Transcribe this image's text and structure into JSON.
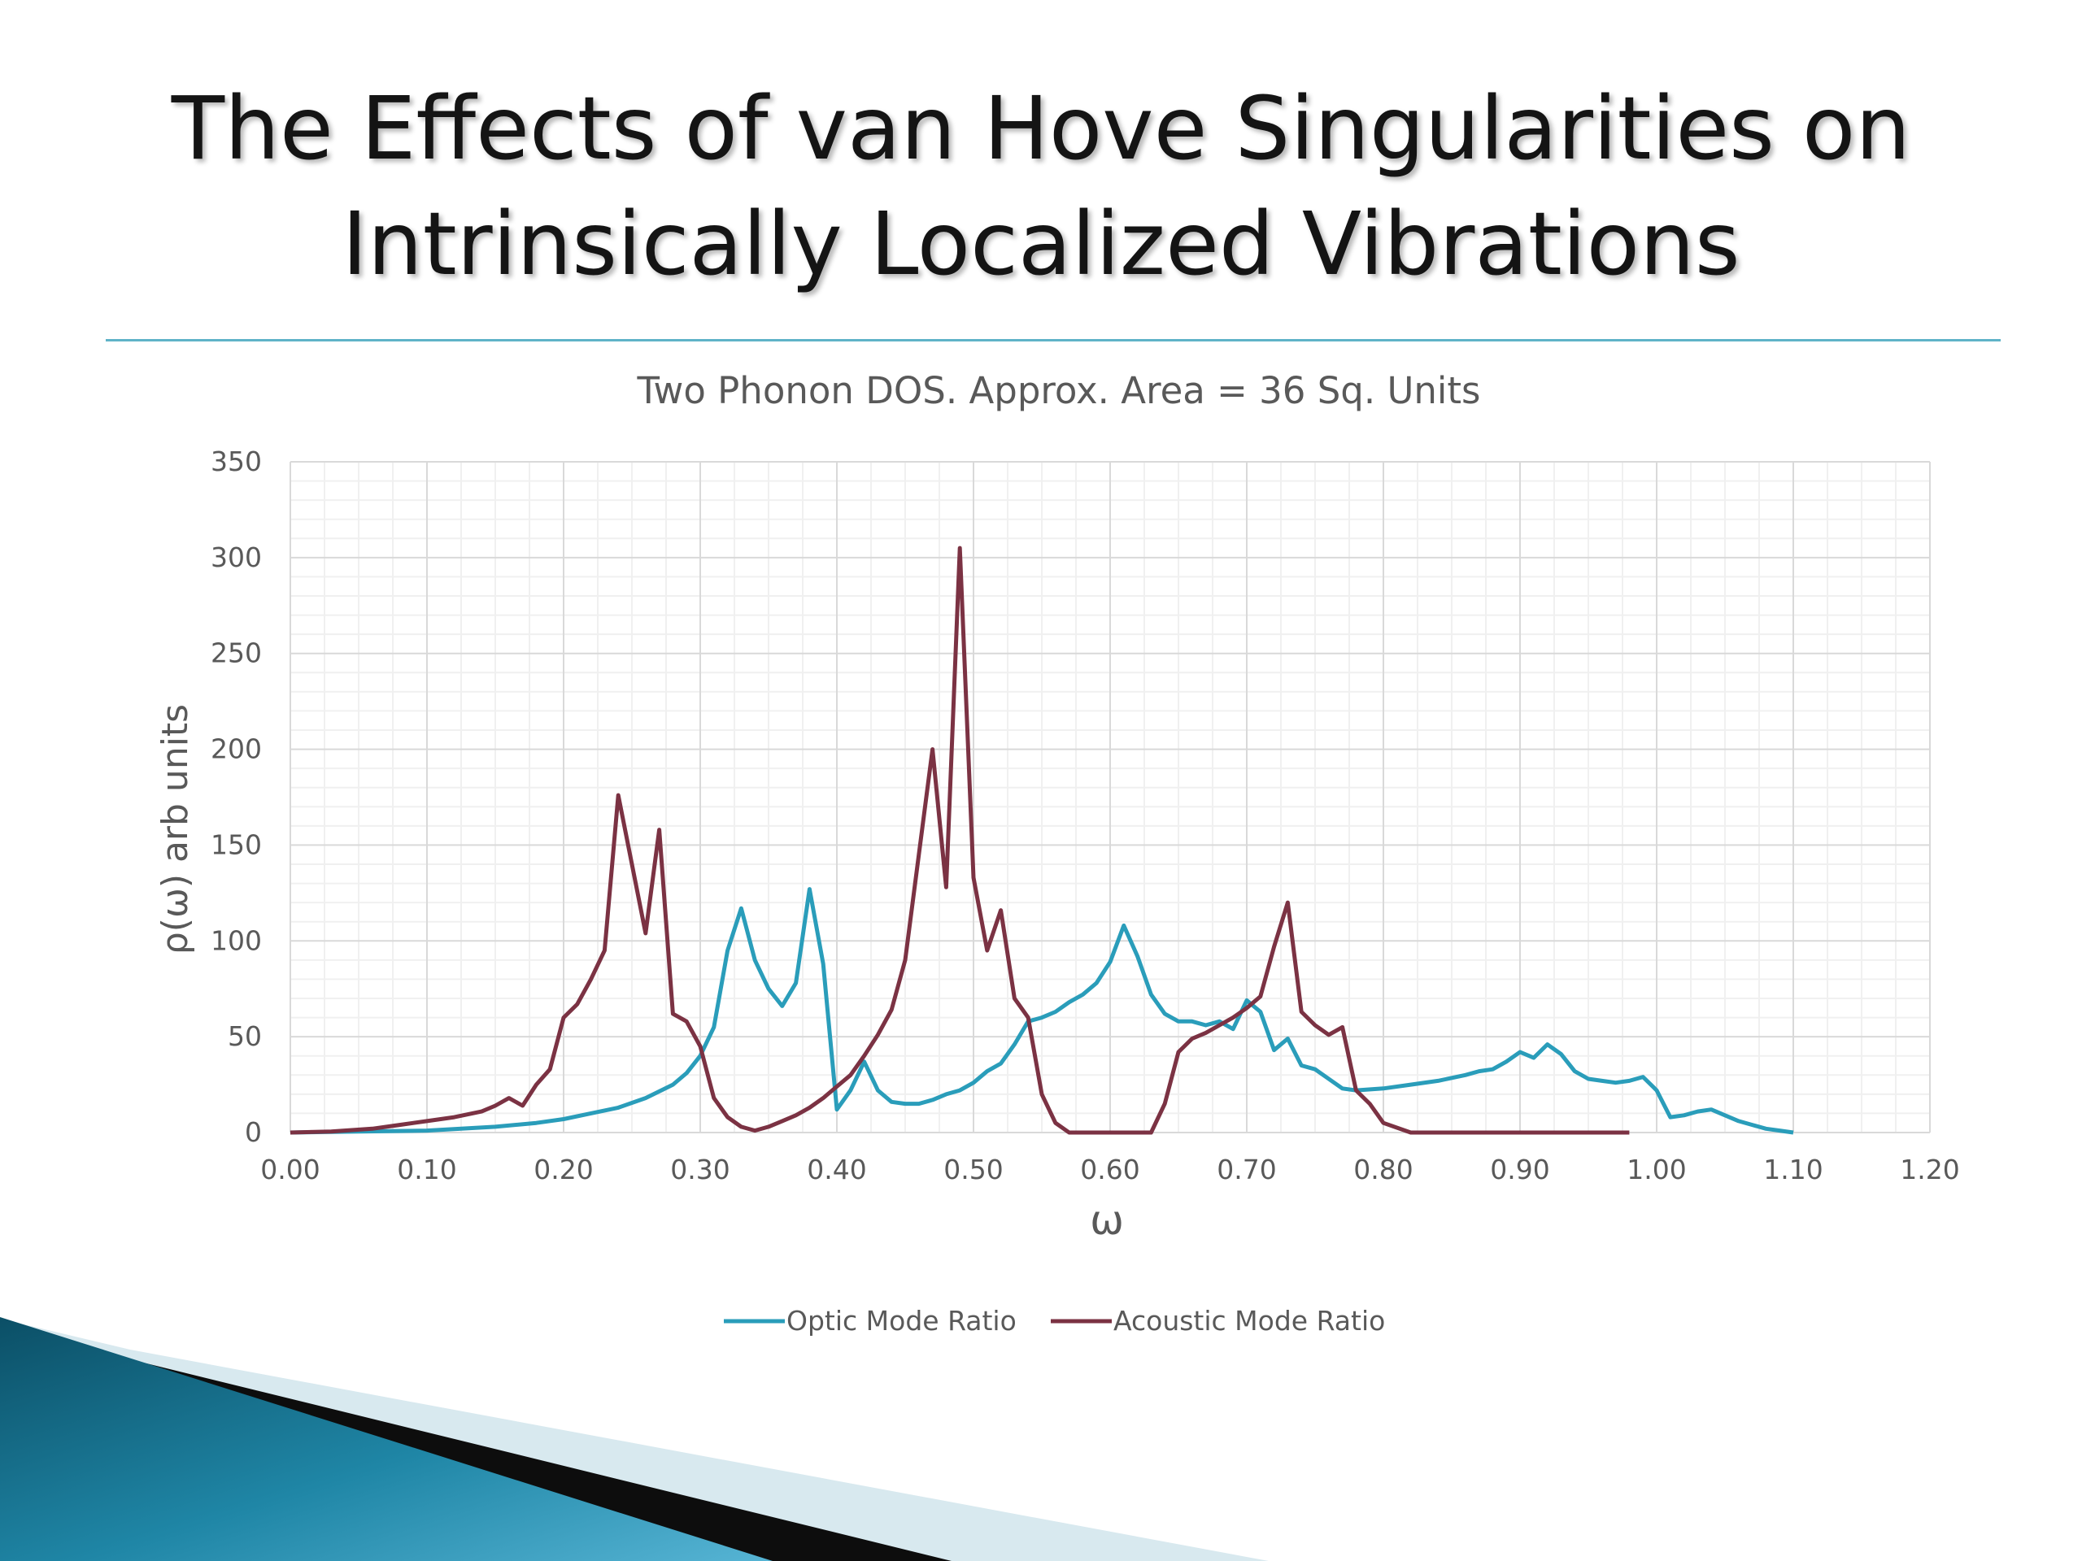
{
  "slide": {
    "title_line1": "The Effects of van Hove Singularities on",
    "title_line2": "Intrinsically Localized Vibrations",
    "divider_color": "#5fb3c8"
  },
  "chart_data": {
    "type": "line",
    "title": "Two Phonon DOS. Approx. Area = 36 Sq. Units",
    "xlabel": "ω",
    "ylabel": "ρ(ω) arb units",
    "xlim": [
      0,
      1.2
    ],
    "ylim": [
      0,
      350
    ],
    "x_ticks": [
      0,
      0.1,
      0.2,
      0.3,
      0.4,
      0.5,
      0.6,
      0.7,
      0.8,
      0.9,
      1.0,
      1.1,
      1.2
    ],
    "x_tick_labels": [
      "0.00",
      "0.10",
      "0.20",
      "0.30",
      "0.40",
      "0.50",
      "0.60",
      "0.70",
      "0.80",
      "0.90",
      "1.00",
      "1.10",
      "1.20"
    ],
    "y_ticks": [
      0,
      50,
      100,
      150,
      200,
      250,
      300,
      350
    ],
    "y_tick_labels": [
      "0",
      "50",
      "100",
      "150",
      "200",
      "250",
      "300",
      "350"
    ],
    "grid": true,
    "legend_position": "bottom",
    "series": [
      {
        "name": "Optic Mode Ratio",
        "color": "#2a9dba",
        "points": [
          [
            0,
            0
          ],
          [
            0.05,
            0.5
          ],
          [
            0.1,
            1
          ],
          [
            0.15,
            3
          ],
          [
            0.18,
            5
          ],
          [
            0.2,
            7
          ],
          [
            0.22,
            10
          ],
          [
            0.24,
            13
          ],
          [
            0.26,
            18
          ],
          [
            0.28,
            25
          ],
          [
            0.29,
            31
          ],
          [
            0.3,
            40
          ],
          [
            0.31,
            55
          ],
          [
            0.32,
            95
          ],
          [
            0.33,
            117
          ],
          [
            0.34,
            90
          ],
          [
            0.35,
            75
          ],
          [
            0.36,
            66
          ],
          [
            0.37,
            78
          ],
          [
            0.38,
            127
          ],
          [
            0.39,
            88
          ],
          [
            0.4,
            12
          ],
          [
            0.41,
            22
          ],
          [
            0.42,
            37
          ],
          [
            0.43,
            22
          ],
          [
            0.44,
            16
          ],
          [
            0.45,
            15
          ],
          [
            0.46,
            15
          ],
          [
            0.47,
            17
          ],
          [
            0.48,
            20
          ],
          [
            0.49,
            22
          ],
          [
            0.5,
            26
          ],
          [
            0.51,
            32
          ],
          [
            0.52,
            36
          ],
          [
            0.53,
            46
          ],
          [
            0.54,
            58
          ],
          [
            0.55,
            60
          ],
          [
            0.56,
            63
          ],
          [
            0.57,
            68
          ],
          [
            0.58,
            72
          ],
          [
            0.59,
            78
          ],
          [
            0.6,
            89
          ],
          [
            0.61,
            108
          ],
          [
            0.62,
            92
          ],
          [
            0.63,
            72
          ],
          [
            0.64,
            62
          ],
          [
            0.65,
            58
          ],
          [
            0.66,
            58
          ],
          [
            0.67,
            56
          ],
          [
            0.68,
            58
          ],
          [
            0.69,
            54
          ],
          [
            0.7,
            69
          ],
          [
            0.71,
            63
          ],
          [
            0.72,
            43
          ],
          [
            0.73,
            49
          ],
          [
            0.74,
            35
          ],
          [
            0.75,
            33
          ],
          [
            0.76,
            28
          ],
          [
            0.77,
            23
          ],
          [
            0.78,
            22
          ],
          [
            0.8,
            23
          ],
          [
            0.82,
            25
          ],
          [
            0.84,
            27
          ],
          [
            0.86,
            30
          ],
          [
            0.87,
            32
          ],
          [
            0.88,
            33
          ],
          [
            0.89,
            37
          ],
          [
            0.9,
            42
          ],
          [
            0.91,
            39
          ],
          [
            0.92,
            46
          ],
          [
            0.93,
            41
          ],
          [
            0.94,
            32
          ],
          [
            0.95,
            28
          ],
          [
            0.96,
            27
          ],
          [
            0.97,
            26
          ],
          [
            0.98,
            27
          ],
          [
            0.99,
            29
          ],
          [
            1.0,
            22
          ],
          [
            1.01,
            8
          ],
          [
            1.02,
            9
          ],
          [
            1.03,
            11
          ],
          [
            1.04,
            12
          ],
          [
            1.05,
            9
          ],
          [
            1.06,
            6
          ],
          [
            1.07,
            4
          ],
          [
            1.08,
            2
          ],
          [
            1.09,
            1
          ],
          [
            1.1,
            0
          ]
        ]
      },
      {
        "name": "Acoustic Mode Ratio",
        "color": "#7b3243",
        "points": [
          [
            0,
            0
          ],
          [
            0.03,
            0.5
          ],
          [
            0.06,
            2
          ],
          [
            0.08,
            4
          ],
          [
            0.1,
            6
          ],
          [
            0.12,
            8
          ],
          [
            0.14,
            11
          ],
          [
            0.15,
            14
          ],
          [
            0.16,
            18
          ],
          [
            0.17,
            14
          ],
          [
            0.18,
            25
          ],
          [
            0.19,
            33
          ],
          [
            0.2,
            60
          ],
          [
            0.21,
            67
          ],
          [
            0.22,
            80
          ],
          [
            0.23,
            95
          ],
          [
            0.24,
            176
          ],
          [
            0.25,
            140
          ],
          [
            0.26,
            104
          ],
          [
            0.27,
            158
          ],
          [
            0.28,
            62
          ],
          [
            0.29,
            58
          ],
          [
            0.3,
            45
          ],
          [
            0.31,
            18
          ],
          [
            0.32,
            8
          ],
          [
            0.33,
            3
          ],
          [
            0.34,
            1
          ],
          [
            0.35,
            3
          ],
          [
            0.36,
            6
          ],
          [
            0.37,
            9
          ],
          [
            0.38,
            13
          ],
          [
            0.39,
            18
          ],
          [
            0.4,
            24
          ],
          [
            0.41,
            30
          ],
          [
            0.42,
            40
          ],
          [
            0.43,
            51
          ],
          [
            0.44,
            64
          ],
          [
            0.45,
            90
          ],
          [
            0.46,
            145
          ],
          [
            0.47,
            200
          ],
          [
            0.48,
            128
          ],
          [
            0.49,
            305
          ],
          [
            0.5,
            133
          ],
          [
            0.51,
            95
          ],
          [
            0.52,
            116
          ],
          [
            0.53,
            70
          ],
          [
            0.54,
            60
          ],
          [
            0.55,
            20
          ],
          [
            0.56,
            5
          ],
          [
            0.57,
            0
          ],
          [
            0.6,
            0
          ],
          [
            0.63,
            0
          ],
          [
            0.64,
            15
          ],
          [
            0.65,
            42
          ],
          [
            0.66,
            49
          ],
          [
            0.67,
            52
          ],
          [
            0.68,
            56
          ],
          [
            0.69,
            60
          ],
          [
            0.7,
            65
          ],
          [
            0.71,
            71
          ],
          [
            0.72,
            97
          ],
          [
            0.73,
            120
          ],
          [
            0.74,
            63
          ],
          [
            0.75,
            56
          ],
          [
            0.76,
            51
          ],
          [
            0.77,
            55
          ],
          [
            0.78,
            22
          ],
          [
            0.79,
            15
          ],
          [
            0.8,
            5
          ],
          [
            0.82,
            0
          ],
          [
            0.9,
            0
          ],
          [
            0.98,
            0
          ]
        ]
      }
    ]
  }
}
